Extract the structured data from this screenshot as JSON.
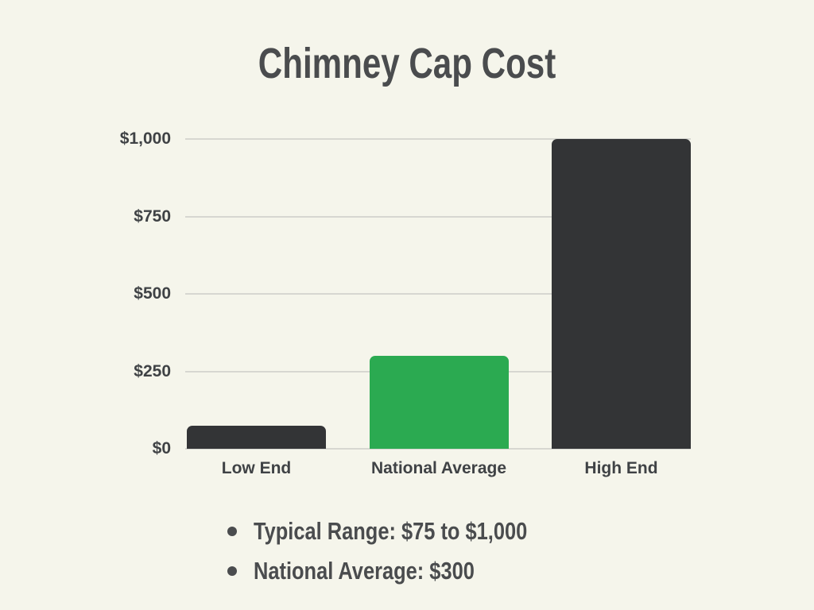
{
  "title": "Chimney Cap Cost",
  "notes": [
    "Typical Range: $75 to $1,000",
    "National Average: $300"
  ],
  "colors": {
    "background": "#f5f5eb",
    "bar_dark": "#333436",
    "bar_green": "#2baa51",
    "heading_text": "#4a4c4e",
    "axis_text": "#3f4245",
    "gridline": "#d7d7d1"
  },
  "chart_data": {
    "type": "bar",
    "title": "Chimney Cap Cost",
    "categories": [
      "Low End",
      "National Average",
      "High End"
    ],
    "values": [
      75,
      300,
      1000
    ],
    "bar_colors": [
      "#333436",
      "#2baa51",
      "#333436"
    ],
    "xlabel": "",
    "ylabel": "",
    "ylim": [
      0,
      1000
    ],
    "yticks": [
      0,
      250,
      500,
      750,
      1000
    ],
    "ytick_labels": [
      "$0",
      "$250",
      "$500",
      "$750",
      "$1,000"
    ],
    "grid": true,
    "legend": false,
    "annotations": [
      "Typical Range: $75 to $1,000",
      "National Average: $300"
    ]
  }
}
